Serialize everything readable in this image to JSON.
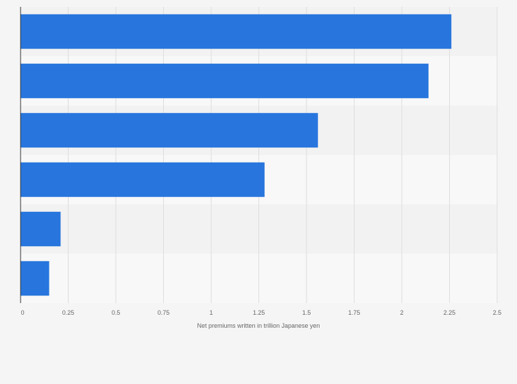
{
  "chart_data": {
    "type": "bar",
    "orientation": "horizontal",
    "categories": [
      "",
      "",
      "",
      "",
      "",
      ""
    ],
    "values": [
      2.26,
      2.14,
      1.56,
      1.28,
      0.21,
      0.15
    ],
    "title": "",
    "xlabel": "Net premiums written in trillion Japanese yen",
    "ylabel": "",
    "xlim": [
      0,
      2.5
    ],
    "xticks": [
      "0",
      "0.25",
      "0.5",
      "0.75",
      "1",
      "1.25",
      "1.5",
      "1.75",
      "2",
      "2.25",
      "2.5"
    ],
    "grid": "vertical",
    "legend": "none",
    "bar_color": "#2876dd",
    "band_colors": [
      "#f2f2f2",
      "#f8f8f8"
    ]
  }
}
